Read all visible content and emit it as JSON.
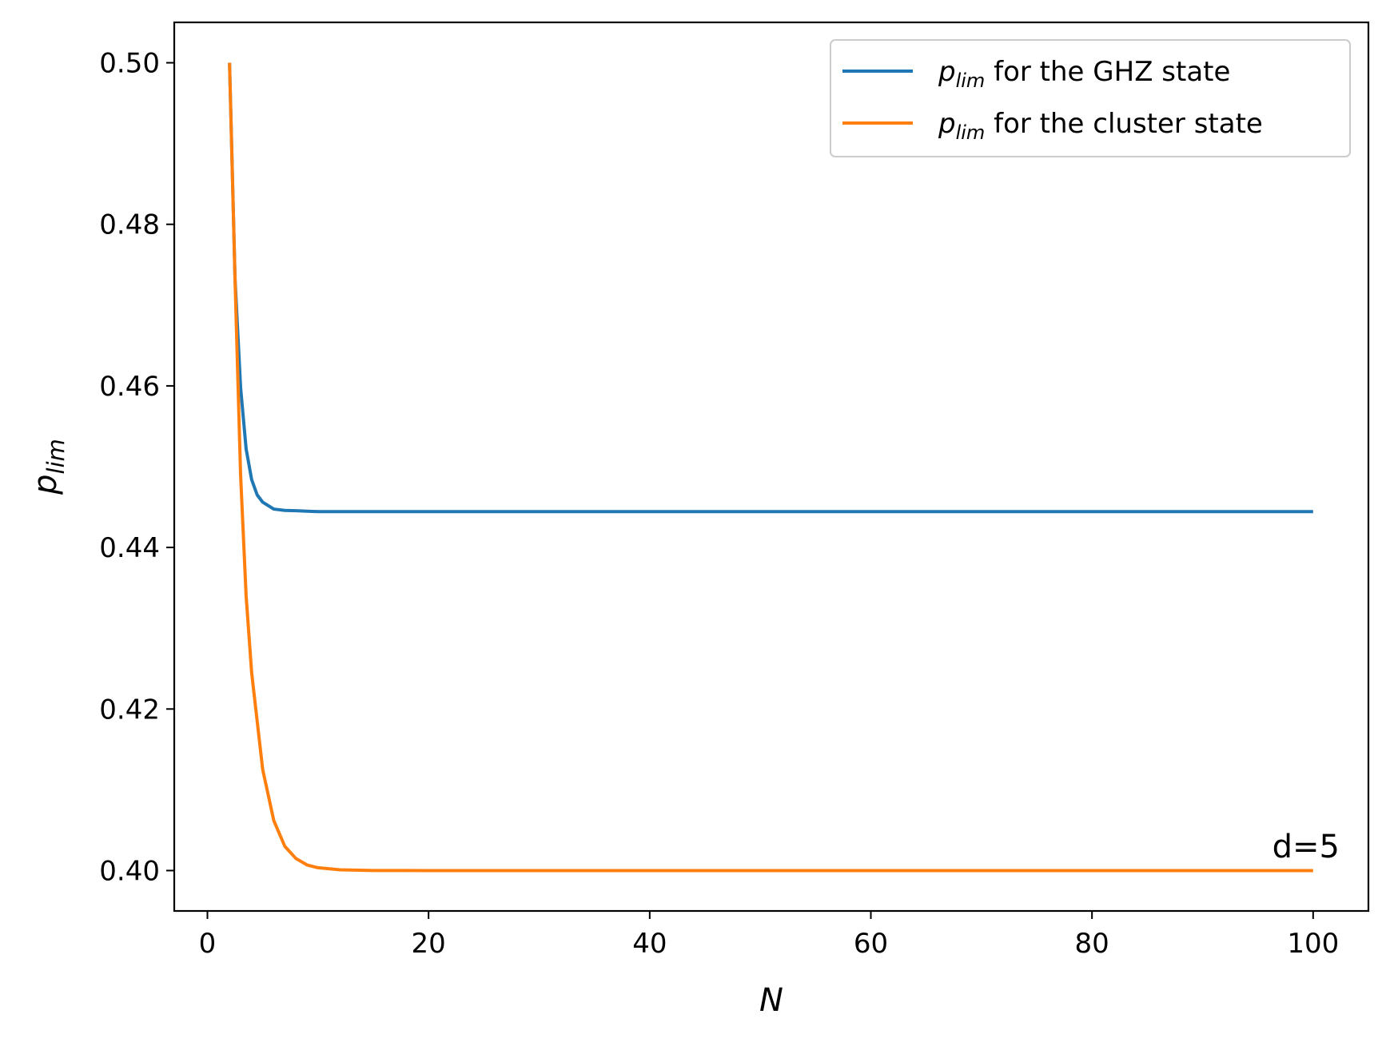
{
  "chart_data": {
    "type": "line",
    "xlabel": "N",
    "ylabel": "p_lim",
    "ylabel_main": "p",
    "ylabel_sub": "lim",
    "xlim": [
      -3,
      105
    ],
    "ylim": [
      0.395,
      0.505
    ],
    "xticks": [
      0,
      20,
      40,
      60,
      80,
      100
    ],
    "xtick_labels": [
      "0",
      "20",
      "40",
      "60",
      "80",
      "100"
    ],
    "yticks": [
      0.4,
      0.42,
      0.44,
      0.46,
      0.48,
      0.5
    ],
    "ytick_labels": [
      "0.40",
      "0.42",
      "0.44",
      "0.46",
      "0.48",
      "0.50"
    ],
    "grid": false,
    "legend_position": "upper-right",
    "annotation": "d=5",
    "series": [
      {
        "name": "p_lim for the GHZ state",
        "legend_main": "p",
        "legend_sub": "lim",
        "legend_rest": " for the GHZ state",
        "color": "#1f77b4",
        "x": [
          2,
          2.5,
          3,
          3.5,
          4,
          4.5,
          5,
          6,
          7,
          8,
          10,
          20,
          40,
          60,
          80,
          100
        ],
        "y": [
          0.5,
          0.4732,
          0.4598,
          0.4522,
          0.4484,
          0.4465,
          0.4456,
          0.44475,
          0.44458,
          0.444545,
          0.44444,
          0.44444,
          0.44444,
          0.44444,
          0.44444,
          0.44444
        ]
      },
      {
        "name": "p_lim for the cluster state",
        "legend_main": "p",
        "legend_sub": "lim",
        "legend_rest": " for the cluster state",
        "color": "#ff7f0e",
        "x": [
          2,
          2.5,
          3,
          3.5,
          4,
          5,
          6,
          7,
          8,
          9,
          10,
          12,
          15,
          20,
          40,
          60,
          80,
          100
        ],
        "y": [
          0.5,
          0.473,
          0.449,
          0.434,
          0.4245,
          0.4125,
          0.4062,
          0.403,
          0.4015,
          0.4007,
          0.40035,
          0.40009,
          0.40001,
          0.4,
          0.4,
          0.4,
          0.4,
          0.4
        ]
      }
    ]
  }
}
